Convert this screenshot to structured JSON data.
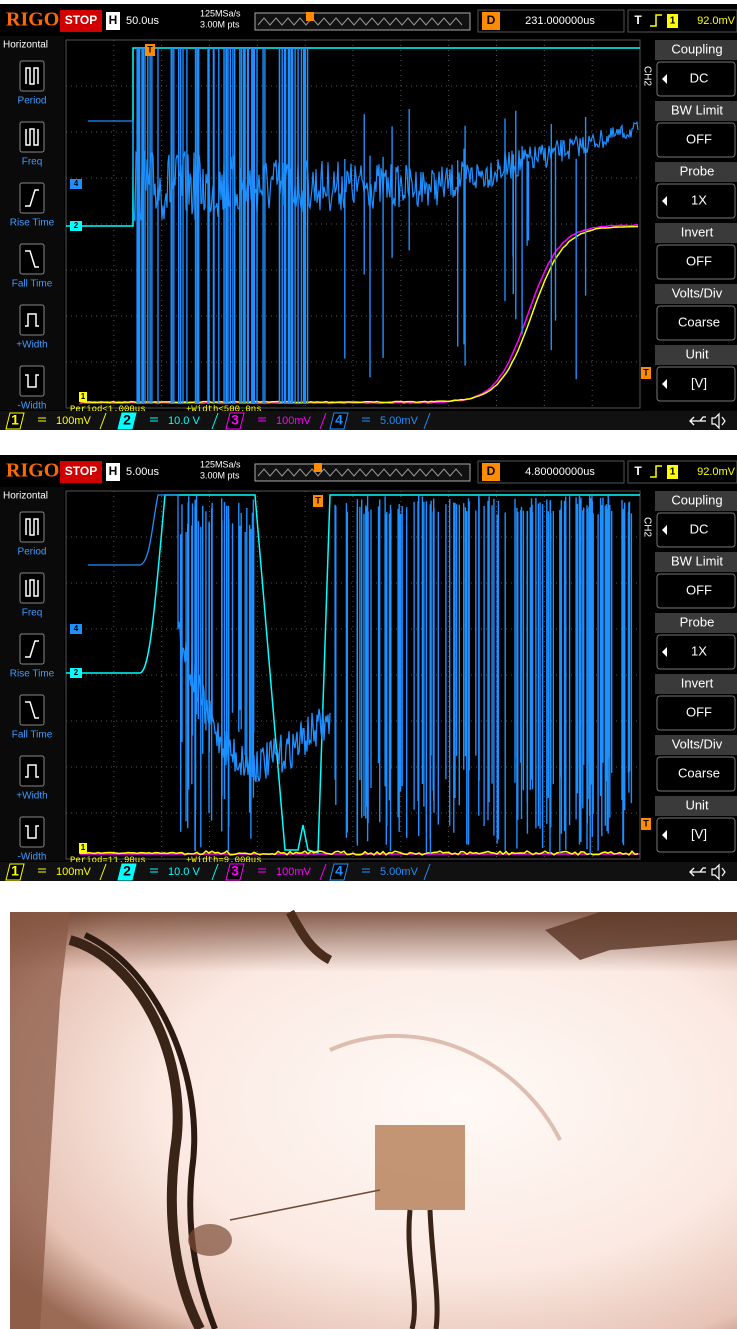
{
  "screens": [
    {
      "brand": "RIGOL",
      "run_state": "STOP",
      "timebase_label": "H",
      "timebase": "50.0us",
      "sample_rate": "125MSa/s",
      "memory_depth": "3.00M pts",
      "delay_label": "D",
      "delay": "231.000000us",
      "trigger_label": "T",
      "trigger_source": "1",
      "trigger_level": "92.0mV",
      "left_menu": {
        "title": "Horizontal",
        "items": [
          "Period",
          "Freq",
          "Rise Time",
          "Fall Time",
          "+Width",
          "-Width"
        ]
      },
      "right_menu": {
        "channel": "CH2",
        "items": [
          {
            "label": "Coupling",
            "value": "DC"
          },
          {
            "label": "BW Limit",
            "value": "OFF"
          },
          {
            "label": "Probe",
            "value": "1X"
          },
          {
            "label": "Invert",
            "value": "OFF"
          },
          {
            "label": "Volts/Div",
            "value": "Coarse"
          },
          {
            "label": "Unit",
            "value": "[V]"
          }
        ]
      },
      "channel_markers": [
        "4",
        "2"
      ],
      "measurements": [
        "Period<1.000us",
        "+Width<500.0ns"
      ],
      "channels": [
        {
          "number": "1",
          "scale": "100mV"
        },
        {
          "number": "2",
          "scale": "10.0 V"
        },
        {
          "number": "3",
          "scale": "100mV"
        },
        {
          "number": "4",
          "scale": "5.00mV"
        }
      ]
    },
    {
      "brand": "RIGOL",
      "run_state": "STOP",
      "timebase_label": "H",
      "timebase": "5.00us",
      "sample_rate": "125MSa/s",
      "memory_depth": "3.00M pts",
      "delay_label": "D",
      "delay": "4.80000000us",
      "trigger_label": "T",
      "trigger_source": "1",
      "trigger_level": "92.0mV",
      "left_menu": {
        "title": "Horizontal",
        "items": [
          "Period",
          "Freq",
          "Rise Time",
          "Fall Time",
          "+Width",
          "-Width"
        ]
      },
      "right_menu": {
        "channel": "CH2",
        "items": [
          {
            "label": "Coupling",
            "value": "DC"
          },
          {
            "label": "BW Limit",
            "value": "OFF"
          },
          {
            "label": "Probe",
            "value": "1X"
          },
          {
            "label": "Invert",
            "value": "OFF"
          },
          {
            "label": "Volts/Div",
            "value": "Coarse"
          },
          {
            "label": "Unit",
            "value": "[V]"
          }
        ]
      },
      "channel_markers": [
        "4",
        "2"
      ],
      "measurements": [
        "Period=11.90us",
        "+Width=9.000us"
      ],
      "channels": [
        {
          "number": "1",
          "scale": "100mV"
        },
        {
          "number": "2",
          "scale": "10.0 V"
        },
        {
          "number": "3",
          "scale": "100mV"
        },
        {
          "number": "4",
          "scale": "5.00mV"
        }
      ]
    }
  ]
}
